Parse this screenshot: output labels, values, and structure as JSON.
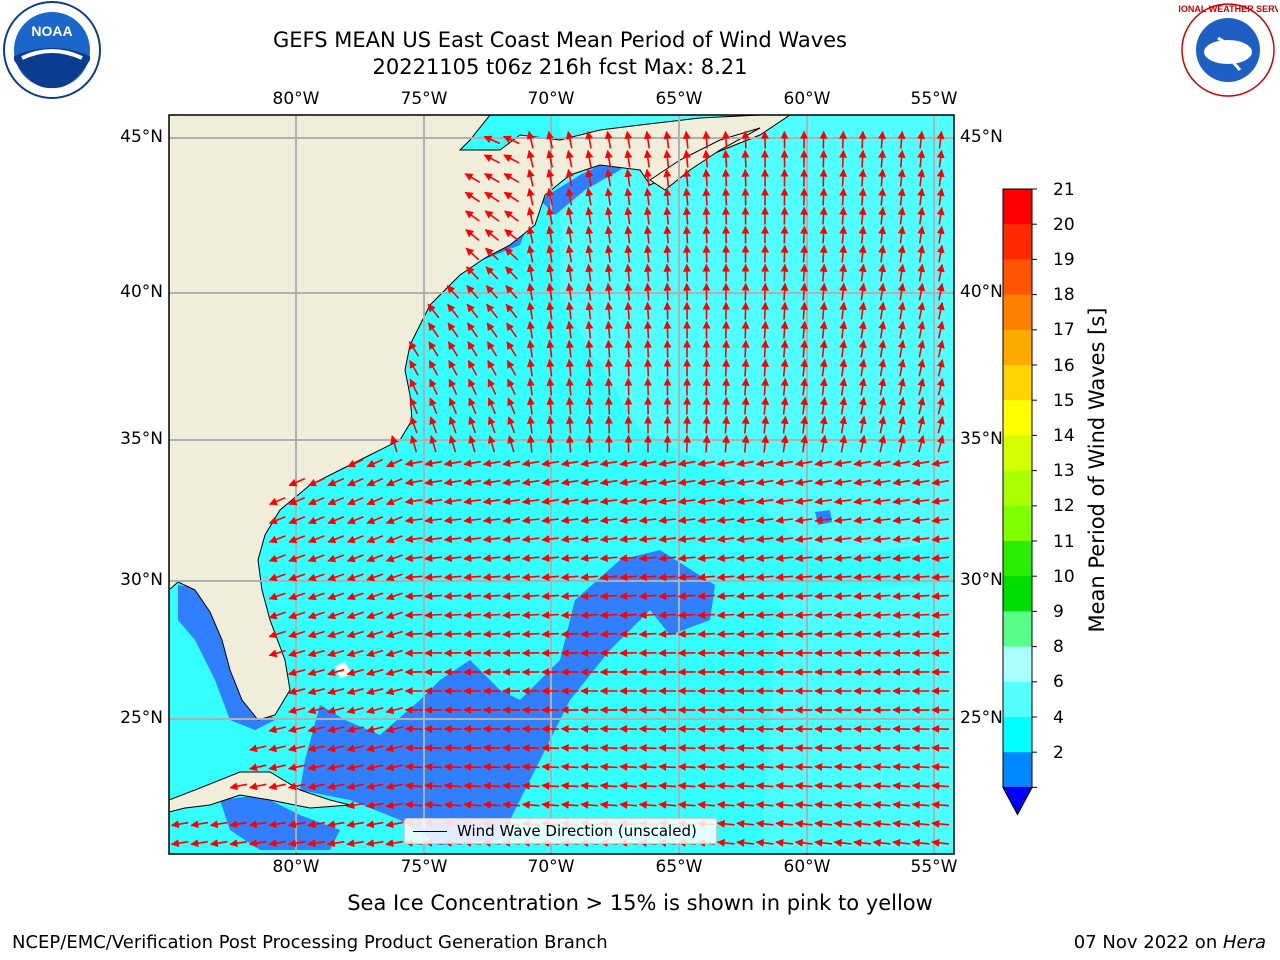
{
  "title_line1": "GEFS MEAN US East Coast Mean Period of Wind Waves",
  "title_line2": "20221105 t06z 216h fcst   Max: 8.21",
  "lon_labels": [
    "80°W",
    "75°W",
    "70°W",
    "65°W",
    "60°W",
    "55°W"
  ],
  "lat_labels": [
    "45°N",
    "40°N",
    "35°N",
    "30°N",
    "25°N"
  ],
  "colorbar": {
    "label": "Mean Period of Wind Waves [s]",
    "ticks": [
      "21",
      "20",
      "19",
      "18",
      "17",
      "16",
      "15",
      "14",
      "13",
      "12",
      "11",
      "10",
      "9",
      "8",
      "6",
      "4",
      "2"
    ],
    "colors": [
      "#ff0000",
      "#ff2a00",
      "#ff5500",
      "#ff8000",
      "#ffaa00",
      "#ffd400",
      "#ffff00",
      "#d4ff00",
      "#aaff00",
      "#80ff00",
      "#2aee00",
      "#00dd00",
      "#55ff88",
      "#aaffff",
      "#55ffff",
      "#00ffff",
      "#0088ff"
    ],
    "extend_color": "#0000ff"
  },
  "legend_label": "Wind Wave Direction (unscaled)",
  "sea_ice_note": "Sea Ice Concentration > 15% is shown in pink to yellow",
  "footer_left": "NCEP/EMC/Verification Post Processing Product Generation Branch",
  "footer_date": "07 Nov 2022 on ",
  "footer_machine": "Hera",
  "logos": {
    "left": "NOAA",
    "right": "NATIONAL WEATHER SERVICE"
  },
  "colors": {
    "land": "#f0eedb",
    "ocean": "#33ffff",
    "low_period": "#2f7fff",
    "arrows": "#ff0000",
    "grid": "#b0b0b0"
  }
}
